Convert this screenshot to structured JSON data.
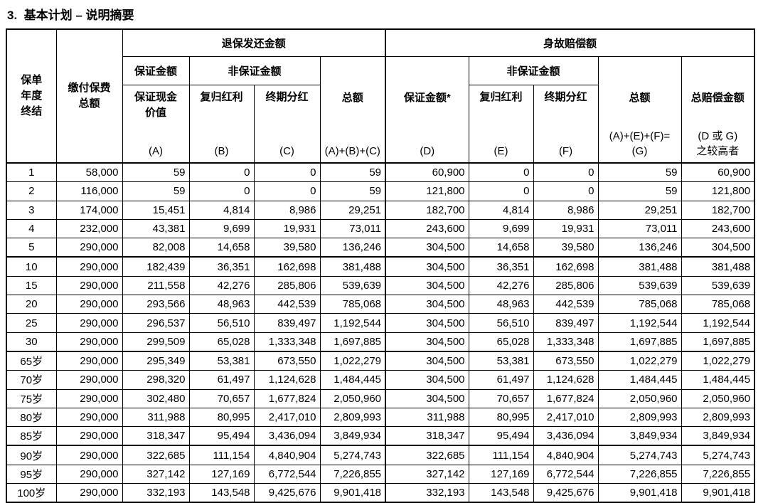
{
  "title": "3.  基本计划 – 说明摘要",
  "table": {
    "header": {
      "policy_year": "保单\n年度\n终结",
      "premium_total": "缴付保费\n总额",
      "surrender_section": "退保发还金额",
      "death_section": "身故赔偿额",
      "guaranteed": "保证金额",
      "guaranteed_star": "保证金额*",
      "non_guaranteed": "非保证金额",
      "guaranteed_cash_value": "保证现金\n价值",
      "reversionary_bonus": "复归红利",
      "terminal_dividend": "终期分红",
      "total": "总额",
      "total_claim": "总赔偿金额",
      "letter_a": "(A)",
      "letter_b": "(B)",
      "letter_c": "(C)",
      "letter_abc": "(A)+(B)+(C)",
      "letter_d": "(D)",
      "letter_e": "(E)",
      "letter_f": "(F)",
      "letter_g": "(A)+(E)+(F)=\n(G)",
      "letter_dg": "(D 或 G)\n之较高者"
    },
    "group_starts": [
      5,
      10,
      15
    ],
    "rows": [
      [
        "1",
        "58,000",
        "59",
        "0",
        "0",
        "59",
        "60,900",
        "0",
        "0",
        "59",
        "60,900"
      ],
      [
        "2",
        "116,000",
        "59",
        "0",
        "0",
        "59",
        "121,800",
        "0",
        "0",
        "59",
        "121,800"
      ],
      [
        "3",
        "174,000",
        "15,451",
        "4,814",
        "8,986",
        "29,251",
        "182,700",
        "4,814",
        "8,986",
        "29,251",
        "182,700"
      ],
      [
        "4",
        "232,000",
        "43,381",
        "9,699",
        "19,931",
        "73,011",
        "243,600",
        "9,699",
        "19,931",
        "73,011",
        "243,600"
      ],
      [
        "5",
        "290,000",
        "82,008",
        "14,658",
        "39,580",
        "136,246",
        "304,500",
        "14,658",
        "39,580",
        "136,246",
        "304,500"
      ],
      [
        "10",
        "290,000",
        "182,439",
        "36,351",
        "162,698",
        "381,488",
        "304,500",
        "36,351",
        "162,698",
        "381,488",
        "381,488"
      ],
      [
        "15",
        "290,000",
        "211,558",
        "42,276",
        "285,806",
        "539,639",
        "304,500",
        "42,276",
        "285,806",
        "539,639",
        "539,639"
      ],
      [
        "20",
        "290,000",
        "293,566",
        "48,963",
        "442,539",
        "785,068",
        "304,500",
        "48,963",
        "442,539",
        "785,068",
        "785,068"
      ],
      [
        "25",
        "290,000",
        "296,537",
        "56,510",
        "839,497",
        "1,192,544",
        "304,500",
        "56,510",
        "839,497",
        "1,192,544",
        "1,192,544"
      ],
      [
        "30",
        "290,000",
        "299,509",
        "65,028",
        "1,333,348",
        "1,697,885",
        "304,500",
        "65,028",
        "1,333,348",
        "1,697,885",
        "1,697,885"
      ],
      [
        "65岁",
        "290,000",
        "295,349",
        "53,381",
        "673,550",
        "1,022,279",
        "304,500",
        "53,381",
        "673,550",
        "1,022,279",
        "1,022,279"
      ],
      [
        "70岁",
        "290,000",
        "298,320",
        "61,497",
        "1,124,628",
        "1,484,445",
        "304,500",
        "61,497",
        "1,124,628",
        "1,484,445",
        "1,484,445"
      ],
      [
        "75岁",
        "290,000",
        "302,480",
        "70,657",
        "1,677,824",
        "2,050,960",
        "304,500",
        "70,657",
        "1,677,824",
        "2,050,960",
        "2,050,960"
      ],
      [
        "80岁",
        "290,000",
        "311,988",
        "80,995",
        "2,417,010",
        "2,809,993",
        "311,988",
        "80,995",
        "2,417,010",
        "2,809,993",
        "2,809,993"
      ],
      [
        "85岁",
        "290,000",
        "318,347",
        "95,494",
        "3,436,094",
        "3,849,934",
        "318,347",
        "95,494",
        "3,436,094",
        "3,849,934",
        "3,849,934"
      ],
      [
        "90岁",
        "290,000",
        "322,685",
        "111,154",
        "4,840,904",
        "5,274,743",
        "322,685",
        "111,154",
        "4,840,904",
        "5,274,743",
        "5,274,743"
      ],
      [
        "95岁",
        "290,000",
        "327,142",
        "127,169",
        "6,772,544",
        "7,226,855",
        "327,142",
        "127,169",
        "6,772,544",
        "7,226,855",
        "7,226,855"
      ],
      [
        "100岁",
        "290,000",
        "332,193",
        "143,548",
        "9,425,676",
        "9,901,418",
        "332,193",
        "143,548",
        "9,425,676",
        "9,901,418",
        "9,901,418"
      ]
    ]
  }
}
